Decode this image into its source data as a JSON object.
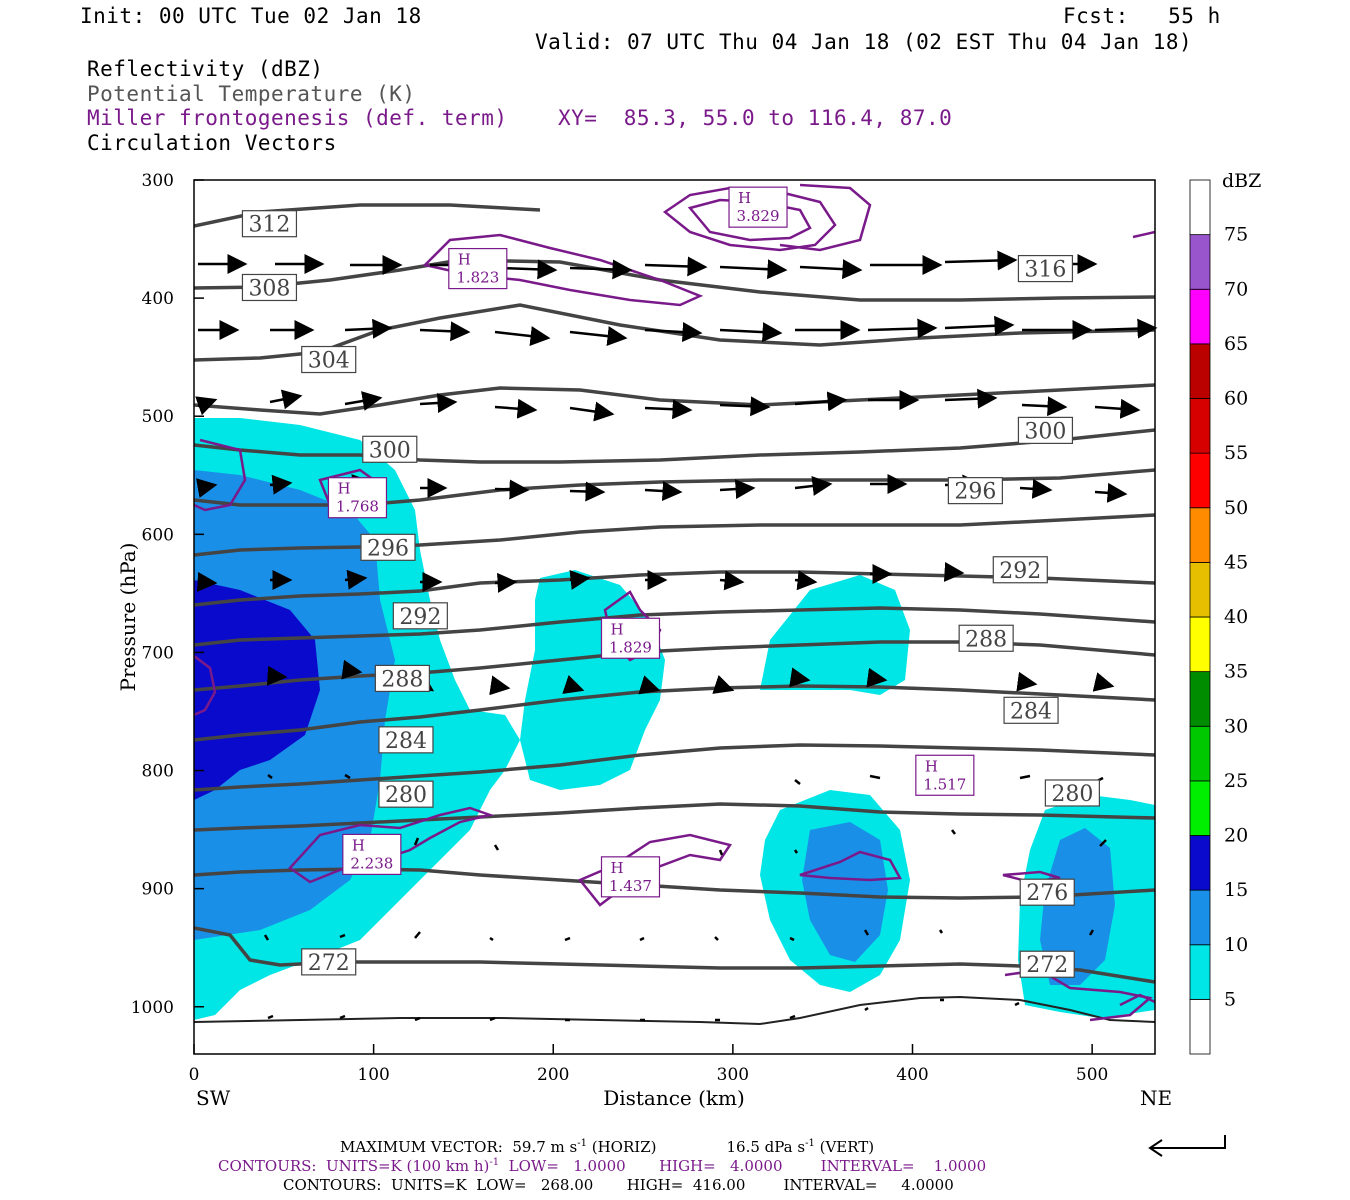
{
  "header": {
    "init": "Init: 00 UTC Tue 02 Jan 18",
    "fcst": "Fcst:   55 h",
    "valid": "Valid: 07 UTC Thu 04 Jan 18 (02 EST Thu 04 Jan 18)",
    "line1": "Reflectivity (dBZ)",
    "line2": "Potential Temperature (K)",
    "line3": "Miller frontogenesis (def. term)",
    "xy": "XY=  85.3, 55.0 to 116.4, 87.0",
    "line4": "Circulation Vectors"
  },
  "footer": {
    "max_vector": "MAXIMUM VECTOR:  59.7 m s",
    "max_vector_exp": "-1",
    "max_vector_horiz": " (HORIZ)",
    "max_vector_vert": "16.5 dPa s",
    "max_vector_vert_exp": "-1",
    "max_vector_vert_tail": " (VERT)",
    "contours_purple": "CONTOURS:  UNITS=K (100 km h)",
    "contours_purple_exp": "-1",
    "contours_purple_tail": "  LOW=   1.0000       HIGH=   4.0000        INTERVAL=    1.0000",
    "contours_black": "CONTOURS:  UNITS=K  LOW=   268.00       HIGH=  416.00        INTERVAL=     4.0000"
  },
  "chart_data": {
    "type": "cross-section",
    "xlabel": "Distance (km)",
    "ylabel": "Pressure (hPa)",
    "x_left_label": "SW",
    "x_right_label": "NE",
    "xlim": [
      0,
      535
    ],
    "ylim": [
      300,
      1040
    ],
    "x_ticks": [
      0,
      100,
      200,
      300,
      400,
      500
    ],
    "y_ticks": [
      300,
      400,
      500,
      600,
      700,
      800,
      900,
      1000
    ],
    "colorbar": {
      "label": "dBZ",
      "levels": [
        5,
        10,
        15,
        20,
        25,
        30,
        35,
        40,
        45,
        50,
        55,
        60,
        65,
        70,
        75
      ],
      "colors": [
        "#ffffff",
        "#00e5e5",
        "#1a8fe8",
        "#0a0acc",
        "#00ee00",
        "#00c800",
        "#008c00",
        "#ffff00",
        "#e6bf00",
        "#ff8c00",
        "#ff0000",
        "#d60000",
        "#bb0000",
        "#ff00ff",
        "#9955cc",
        "#ffffff"
      ]
    },
    "theta_labels": [
      {
        "text": "312",
        "x": 42,
        "p": 337
      },
      {
        "text": "308",
        "x": 42,
        "p": 391
      },
      {
        "text": "304",
        "x": 75,
        "p": 452
      },
      {
        "text": "300",
        "x": 109,
        "p": 528
      },
      {
        "text": "296",
        "x": 108,
        "p": 611
      },
      {
        "text": "292",
        "x": 126,
        "p": 669
      },
      {
        "text": "288",
        "x": 116,
        "p": 722
      },
      {
        "text": "284",
        "x": 118,
        "p": 774
      },
      {
        "text": "280",
        "x": 118,
        "p": 820
      },
      {
        "text": "272",
        "x": 75,
        "p": 962
      },
      {
        "text": "316",
        "x": 474,
        "p": 375
      },
      {
        "text": "300",
        "x": 474,
        "p": 512
      },
      {
        "text": "296",
        "x": 435,
        "p": 563
      },
      {
        "text": "292",
        "x": 460,
        "p": 630
      },
      {
        "text": "288",
        "x": 441,
        "p": 688
      },
      {
        "text": "284",
        "x": 466,
        "p": 749
      },
      {
        "text": "280",
        "x": 489,
        "p": 819
      },
      {
        "text": "276",
        "x": 475,
        "p": 903
      },
      {
        "text": "272",
        "x": 475,
        "p": 964
      }
    ],
    "frontogenesis_highs": [
      {
        "label": "H",
        "value": "3.829",
        "x": 314,
        "p": 323
      },
      {
        "label": "H",
        "value": "1.823",
        "x": 158,
        "p": 375
      },
      {
        "label": "H",
        "value": "1.768",
        "x": 91,
        "p": 569
      },
      {
        "label": "H",
        "value": "1.829",
        "x": 243,
        "p": 688
      },
      {
        "label": "H",
        "value": "1.517",
        "x": 418,
        "p": 804
      },
      {
        "label": "H",
        "value": "2.238",
        "x": 99,
        "p": 871
      },
      {
        "label": "H",
        "value": "1.437",
        "x": 243,
        "p": 890
      }
    ]
  }
}
